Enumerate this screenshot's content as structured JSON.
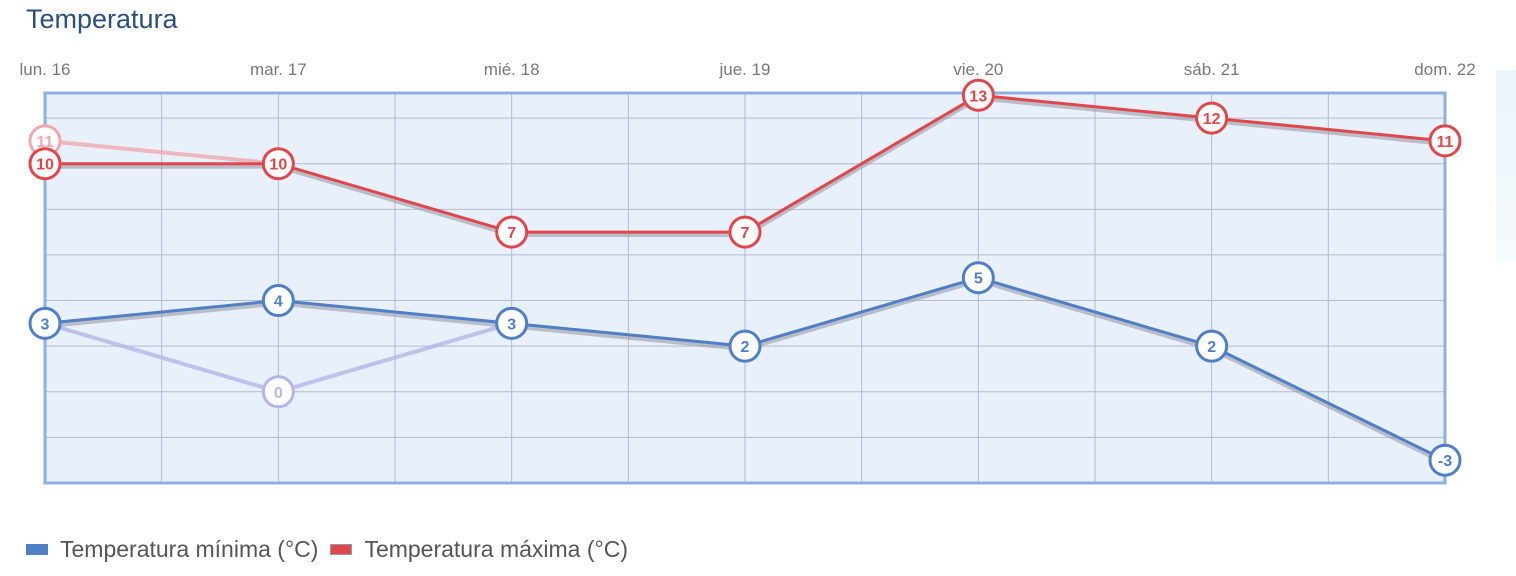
{
  "chart_data": {
    "type": "line",
    "title": "Temperatura",
    "categories": [
      "lun. 16",
      "mar. 17",
      "mié. 18",
      "jue. 19",
      "vie. 20",
      "sáb. 21",
      "dom. 22"
    ],
    "ylim": [
      -4,
      13.1
    ],
    "grid": true,
    "legend_placement": "bottom-left",
    "series": [
      {
        "name": "Temperatura mínima (°C)",
        "color": "#4f7fc4",
        "values": [
          3,
          4,
          3,
          2,
          5,
          2,
          -3
        ]
      },
      {
        "name": "Temperatura máxima (°C)",
        "color": "#e0474c",
        "values": [
          10,
          10,
          7,
          7,
          13,
          12,
          11
        ]
      }
    ],
    "faded_series": [
      {
        "color": "#b3b6e6",
        "values": [
          3,
          0,
          3,
          null,
          null,
          null,
          null
        ]
      },
      {
        "color": "#f0a8ae",
        "values": [
          11,
          10,
          null,
          null,
          null,
          null,
          null
        ]
      }
    ]
  }
}
